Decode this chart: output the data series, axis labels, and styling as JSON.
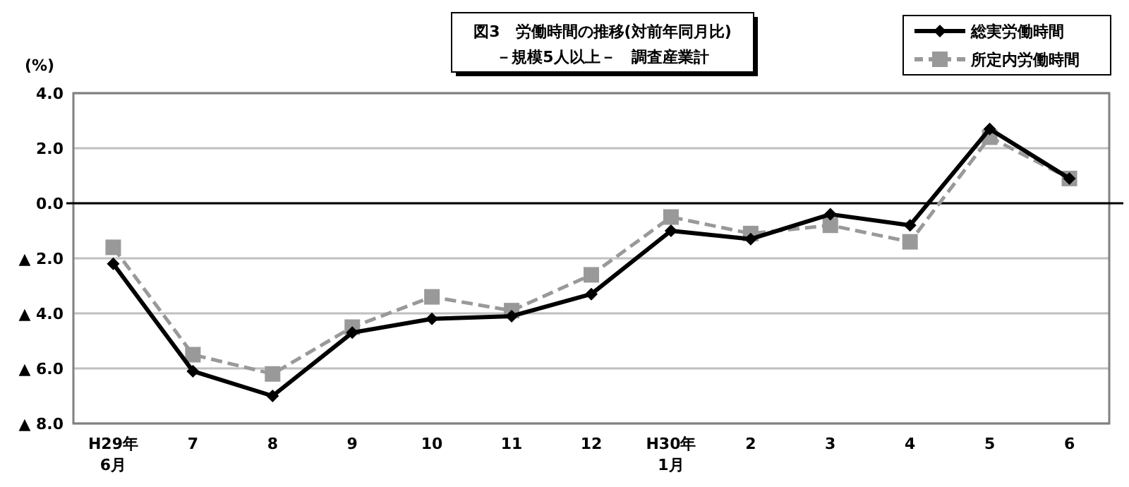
{
  "chart_data": {
    "type": "line",
    "title": "図3　労働時間の推移(対前年同月比)",
    "subtitle": "－規模5人以上－　調査産業計",
    "ylabel": "(%)",
    "categories": [
      "H29年\n6月",
      "7",
      "8",
      "9",
      "10",
      "11",
      "12",
      "H30年\n1月",
      "2",
      "3",
      "4",
      "5",
      "6"
    ],
    "series": [
      {
        "name": "総実労働時間",
        "color": "#000000",
        "marker": "diamond",
        "line_style": "solid",
        "values": [
          -2.2,
          -6.1,
          -7.0,
          -4.7,
          -4.2,
          -4.1,
          -3.3,
          -1.0,
          -1.3,
          -0.4,
          -0.8,
          2.7,
          0.9
        ]
      },
      {
        "name": "所定内労働時間",
        "color": "#999999",
        "marker": "square",
        "line_style": "dashed",
        "values": [
          -1.6,
          -5.5,
          -6.2,
          -4.5,
          -3.4,
          -3.9,
          -2.6,
          -0.5,
          -1.1,
          -0.8,
          -1.4,
          2.4,
          0.9
        ]
      }
    ],
    "ylim": [
      -8,
      4
    ],
    "yticks": [
      {
        "value": -8,
        "label": "▲ 8.0"
      },
      {
        "value": -6,
        "label": "▲ 6.0"
      },
      {
        "value": -4,
        "label": "▲ 4.0"
      },
      {
        "value": -2,
        "label": "▲ 2.0"
      },
      {
        "value": 0,
        "label": "0.0"
      },
      {
        "value": 2,
        "label": "2.0"
      },
      {
        "value": 4,
        "label": "4.0"
      }
    ],
    "grid": "y",
    "legend": "top right",
    "ref_lines": [
      {
        "axis": "y",
        "value": 0,
        "color": "#000000"
      }
    ]
  }
}
